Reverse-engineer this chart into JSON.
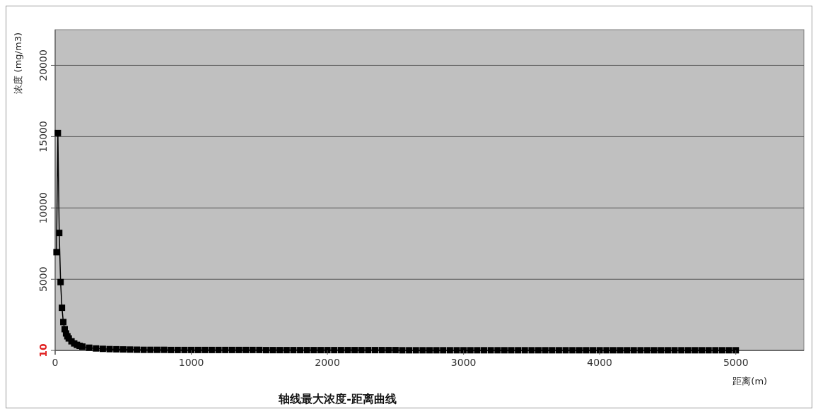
{
  "chart_data": {
    "type": "line",
    "title": "轴线最大浓度-距离曲线",
    "xlabel": "距离(m)",
    "ylabel": "浓度 (mg/m3)",
    "xlim": [
      0,
      5500
    ],
    "xticks": [
      0,
      1000,
      2000,
      3000,
      4000,
      5000
    ],
    "ylim": [
      10,
      22500
    ],
    "yticks": [
      10,
      5000,
      10000,
      15000,
      20000
    ],
    "grid": "y",
    "marker": "square",
    "line_style": "solid",
    "series": [
      {
        "color": "#000000",
        "x": [
          10,
          20,
          30,
          40,
          50,
          60,
          70,
          80,
          90,
          100,
          120,
          140,
          160,
          180,
          200,
          250,
          300,
          350,
          400,
          450,
          500,
          550,
          600,
          650,
          700,
          750,
          800,
          850,
          900,
          950,
          1000,
          1050,
          1100,
          1150,
          1200,
          1250,
          1300,
          1350,
          1400,
          1450,
          1500,
          1550,
          1600,
          1650,
          1700,
          1750,
          1800,
          1850,
          1900,
          1950,
          2000,
          2050,
          2100,
          2150,
          2200,
          2250,
          2300,
          2350,
          2400,
          2450,
          2500,
          2550,
          2600,
          2650,
          2700,
          2750,
          2800,
          2850,
          2900,
          2950,
          3000,
          3050,
          3100,
          3150,
          3200,
          3250,
          3300,
          3350,
          3400,
          3450,
          3500,
          3550,
          3600,
          3650,
          3700,
          3750,
          3800,
          3850,
          3900,
          3950,
          4000,
          4050,
          4100,
          4150,
          4200,
          4250,
          4300,
          4350,
          4400,
          4450,
          4500,
          4550,
          4600,
          4650,
          4700,
          4750,
          4800,
          4850,
          4900,
          4950,
          5000
        ],
        "values": [
          6900,
          15250,
          8250,
          4800,
          3000,
          2000,
          1500,
          1200,
          1000,
          850,
          650,
          500,
          400,
          330,
          280,
          200,
          150,
          120,
          100,
          90,
          80,
          70,
          60,
          50,
          50,
          50,
          50,
          40,
          40,
          40,
          40,
          40,
          40,
          40,
          40,
          40,
          40,
          40,
          40,
          40,
          40,
          30,
          30,
          30,
          30,
          30,
          30,
          30,
          30,
          30,
          30,
          30,
          30,
          30,
          30,
          30,
          30,
          30,
          30,
          30,
          30,
          20,
          20,
          20,
          20,
          20,
          20,
          20,
          20,
          20,
          20,
          20,
          20,
          20,
          20,
          20,
          20,
          20,
          20,
          20,
          20,
          20,
          20,
          20,
          20,
          20,
          20,
          20,
          20,
          20,
          20,
          20,
          20,
          20,
          20,
          20,
          20,
          20,
          20,
          20,
          20,
          20,
          20,
          20,
          20,
          20,
          20,
          20,
          20,
          20,
          20
        ]
      }
    ]
  }
}
